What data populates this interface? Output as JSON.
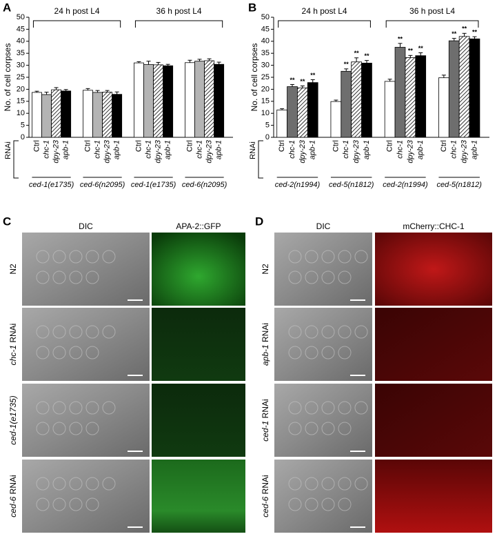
{
  "chart_data": [
    {
      "type": "bar",
      "panel": "A",
      "ylabel": "No. of cell corpses",
      "ylim": [
        0,
        50
      ],
      "yticks": [
        0,
        5,
        10,
        15,
        20,
        25,
        30,
        35,
        40,
        45,
        50
      ],
      "conditions": [
        "24 h post L4",
        "36 h post L4"
      ],
      "rnai_label": "RNAi",
      "categories": [
        "ced-1(e1735)",
        "ced-6(n2095)",
        "ced-1(e1735)",
        "ced-6(n2095)"
      ],
      "series": [
        {
          "name": "Ctrl",
          "italic": false,
          "color": "#ffffff",
          "values": [
            18.7,
            19.6,
            31.0,
            31.1
          ],
          "errors": [
            0.5,
            0.7,
            0.5,
            1.0
          ]
        },
        {
          "name": "chc-1",
          "italic": true,
          "color": "#b4b4b4",
          "values": [
            17.8,
            18.7,
            30.3,
            31.7
          ],
          "errors": [
            1.0,
            0.8,
            1.4,
            0.8
          ]
        },
        {
          "name": "dpy-23",
          "italic": true,
          "color": "#ffffff",
          "hatch": true,
          "values": [
            19.8,
            18.8,
            30.2,
            31.9
          ],
          "errors": [
            0.9,
            0.7,
            1.0,
            0.8
          ]
        },
        {
          "name": "apb-1",
          "italic": true,
          "color": "#000000",
          "values": [
            19.3,
            17.9,
            29.8,
            30.4
          ],
          "errors": [
            0.6,
            1.0,
            0.6,
            0.9
          ]
        }
      ]
    },
    {
      "type": "bar",
      "panel": "B",
      "ylabel": "No. of cell corpses",
      "ylim": [
        0,
        50
      ],
      "yticks": [
        0,
        5,
        10,
        15,
        20,
        25,
        30,
        35,
        40,
        45,
        50
      ],
      "conditions": [
        "24 h post L4",
        "36 h post L4"
      ],
      "rnai_label": "RNAi",
      "categories": [
        "ced-2(n1994)",
        "ced-5(n1812)",
        "ced-2(n1994)",
        "ced-5(n1812)"
      ],
      "series": [
        {
          "name": "Ctrl",
          "italic": false,
          "color": "#ffffff",
          "values": [
            11.4,
            14.9,
            23.3,
            24.8
          ],
          "errors": [
            0.5,
            0.6,
            0.9,
            1.1
          ]
        },
        {
          "name": "chc-1",
          "italic": true,
          "color": "#6e6e6e",
          "values": [
            21.1,
            27.5,
            37.5,
            40.2
          ],
          "errors": [
            0.9,
            1.0,
            1.6,
            1.0
          ]
        },
        {
          "name": "dpy-23",
          "italic": true,
          "color": "#ffffff",
          "hatch": true,
          "values": [
            20.6,
            31.4,
            33.2,
            42.0
          ],
          "errors": [
            0.8,
            1.7,
            0.9,
            1.3
          ]
        },
        {
          "name": "apb-1",
          "italic": true,
          "color": "#000000",
          "values": [
            22.8,
            30.9,
            34.0,
            41.0
          ],
          "errors": [
            1.2,
            1.1,
            1.2,
            0.9
          ]
        }
      ],
      "annotations": [
        null,
        "**",
        "**",
        "**"
      ]
    }
  ],
  "panels": [
    {
      "label": "C",
      "columns": [
        "DIC",
        "APA-2::GFP"
      ],
      "rows": [
        {
          "plain": "N2"
        },
        {
          "italic": "chc-1",
          "plain": "RNAi"
        },
        {
          "italic": "ced-1(e1735)"
        },
        {
          "italic": "ced-6",
          "plain": "RNAi"
        }
      ]
    },
    {
      "label": "D",
      "columns": [
        "DIC",
        "mCherry::CHC-1"
      ],
      "rows": [
        {
          "plain": "N2"
        },
        {
          "italic": "apb-1",
          "plain": "RNAi"
        },
        {
          "italic": "ced-1",
          "plain": "RNAi"
        },
        {
          "italic": "ced-6",
          "plain": "RNAi"
        }
      ]
    }
  ]
}
